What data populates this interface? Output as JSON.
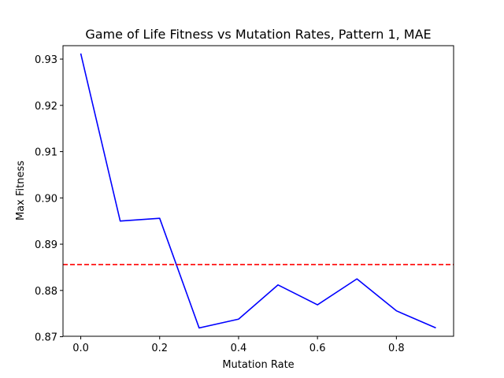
{
  "chart_data": {
    "type": "line",
    "title": "Game of Life Fitness vs Mutation Rates, Pattern 1, MAE",
    "xlabel": "Mutation Rate",
    "ylabel": "Max Fitness",
    "xlim": [
      -0.045,
      0.945
    ],
    "ylim": [
      0.8701,
      0.9329
    ],
    "xticks": [
      0.0,
      0.2,
      0.4,
      0.6,
      0.8
    ],
    "xtick_labels": [
      "0.0",
      "0.2",
      "0.4",
      "0.6",
      "0.8"
    ],
    "yticks": [
      0.87,
      0.88,
      0.89,
      0.9,
      0.91,
      0.92,
      0.93
    ],
    "ytick_labels": [
      "0.87",
      "0.88",
      "0.89",
      "0.90",
      "0.91",
      "0.92",
      "0.93"
    ],
    "grid": false,
    "series": [
      {
        "color": "#0000ff",
        "style": "solid",
        "x": [
          0.0,
          0.1,
          0.2,
          0.3,
          0.4,
          0.5,
          0.6,
          0.7,
          0.8,
          0.9
        ],
        "y": [
          0.9312,
          0.895,
          0.8956,
          0.8719,
          0.8738,
          0.8812,
          0.8769,
          0.8825,
          0.8756,
          0.8719
        ]
      }
    ],
    "reference_line": {
      "orientation": "horizontal",
      "y": 0.8856,
      "color": "#ff0000",
      "style": "dashed"
    }
  }
}
